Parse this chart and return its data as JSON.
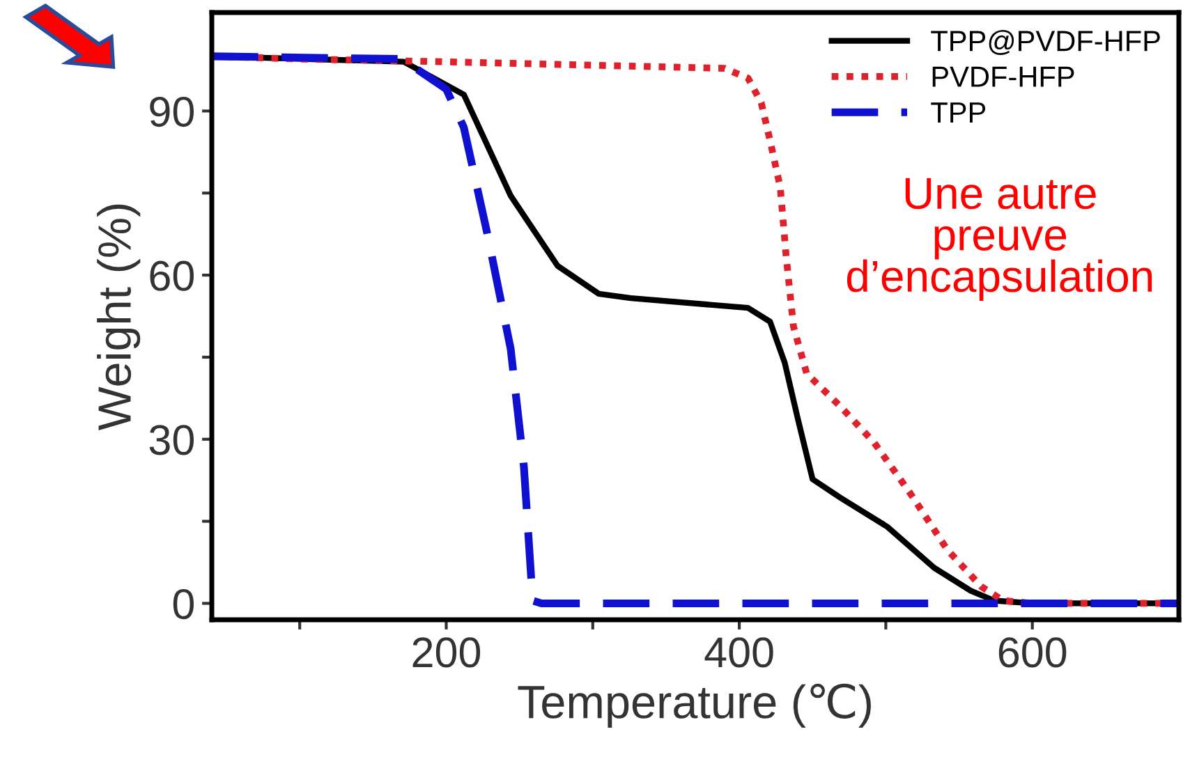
{
  "chart_data": {
    "type": "line",
    "xlabel": "Temperature (℃)",
    "ylabel": "Weight (%)",
    "xlim": [
      40,
      700
    ],
    "xticks": [
      {
        "value": 100,
        "label": null
      },
      200,
      {
        "value": 300,
        "label": null
      },
      400,
      {
        "value": 500,
        "label": null
      },
      600
    ],
    "ylim": [
      -3,
      108
    ],
    "yticks": [
      0,
      {
        "value": 15,
        "label": null
      },
      30,
      {
        "value": 45,
        "label": null
      },
      60,
      {
        "value": 75,
        "label": null
      },
      90
    ],
    "grid": false,
    "legend": "top right",
    "annotations": [
      "Une autre\npreuve\nd’encapsulation"
    ],
    "series": [
      {
        "name": "TPP@PVDF-HFP",
        "color": "#000000",
        "line_style": "solid",
        "x": [
          40,
          171,
          212,
          244,
          276,
          304,
          326,
          406,
          421,
          431,
          440,
          450,
          469,
          501,
          533,
          558,
          574,
          600,
          700
        ],
        "values": [
          100,
          99,
          93,
          74.5,
          61.7,
          56.6,
          55.8,
          54,
          51.5,
          44,
          33.7,
          22.7,
          19.3,
          14,
          6.5,
          2.3,
          0.5,
          0,
          0
        ]
      },
      {
        "name": "PVDF-HFP",
        "color": "#e0202a",
        "line_style": "dotted",
        "x": [
          40,
          100,
          200,
          390,
          406,
          415,
          421,
          428,
          432,
          437,
          446,
          469,
          492,
          517,
          542,
          565,
          580,
          600,
          700
        ],
        "values": [
          100,
          99.5,
          99,
          97.8,
          96,
          91.5,
          84.6,
          76,
          63.4,
          50.6,
          42,
          36,
          29.4,
          20,
          9.8,
          3.1,
          0.5,
          0,
          0
        ]
      },
      {
        "name": "TPP",
        "color": "#1010d0",
        "line_style": "dashed",
        "x": [
          40,
          170,
          200,
          212,
          228,
          244,
          253,
          259,
          265,
          700
        ],
        "values": [
          100,
          99.5,
          94,
          87,
          67.6,
          46.5,
          25,
          0.5,
          0,
          0
        ]
      }
    ]
  }
}
